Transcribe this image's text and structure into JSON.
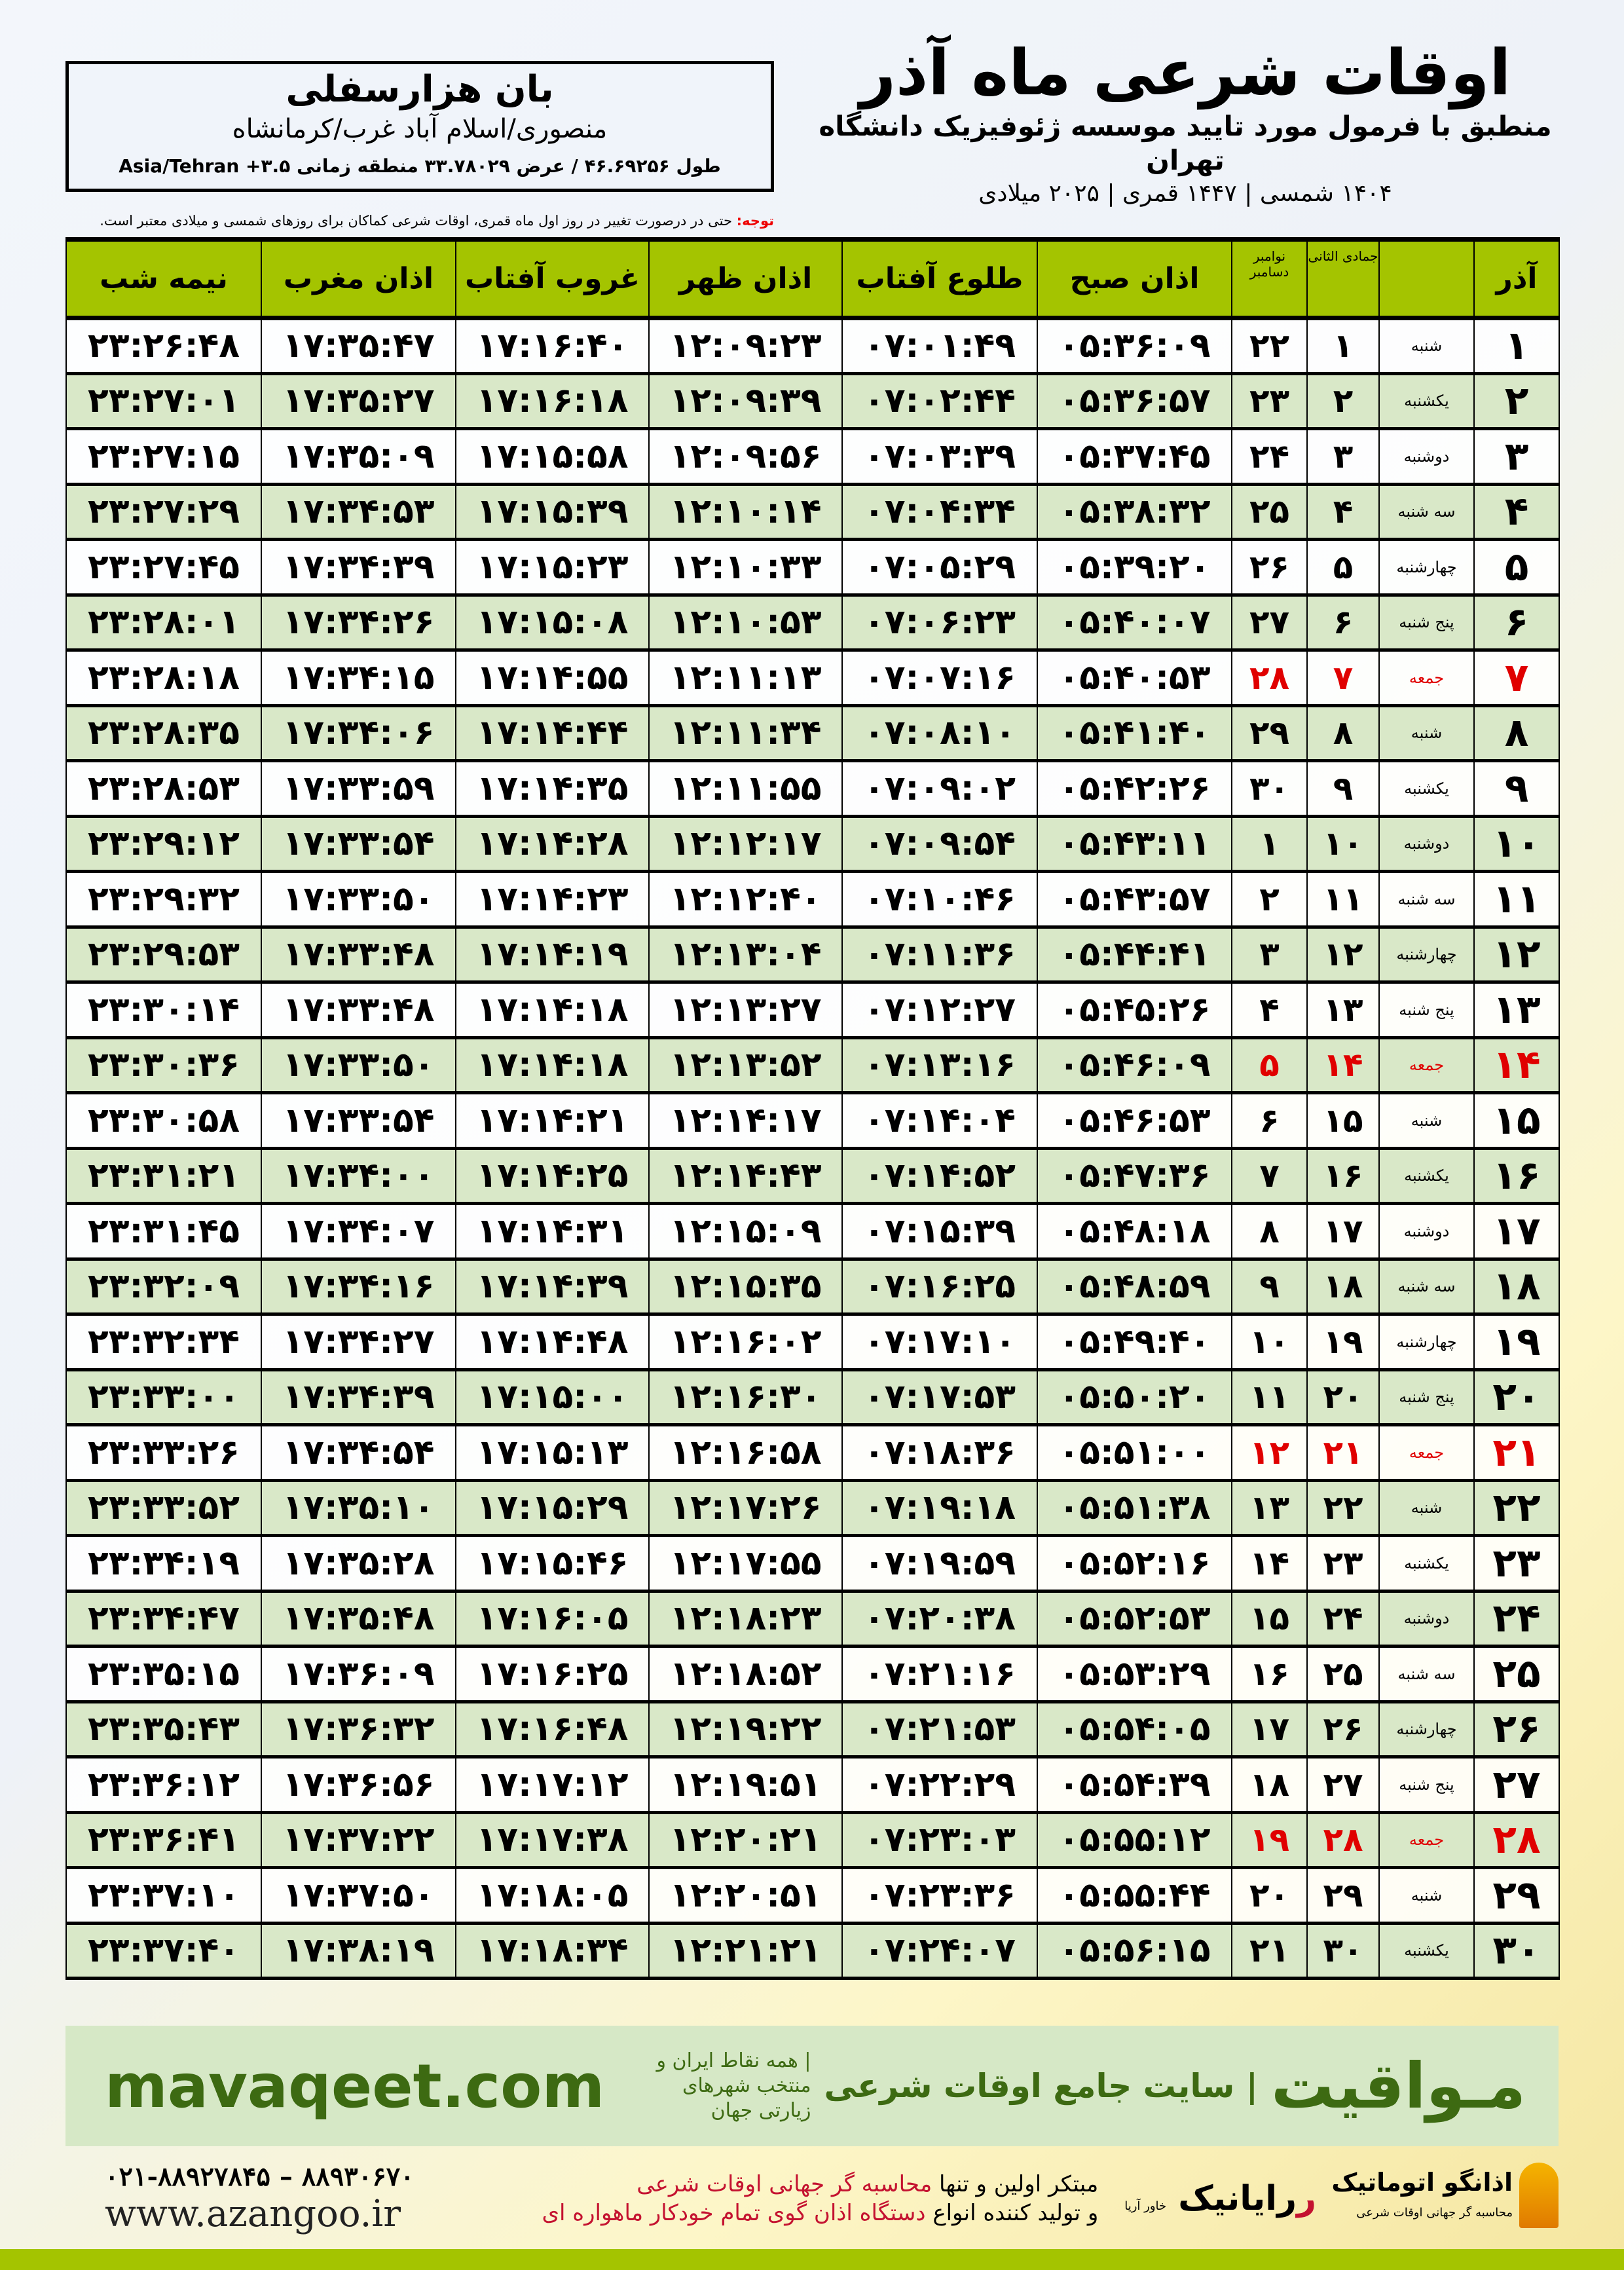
{
  "header": {
    "title": "اوقات شرعی ماه آذر",
    "subtitle": "منطبق با فرمول مورد تایید موسسه ژئوفیزیک دانشگاه تهران",
    "years": "۱۴۰۴ شمسی | ۱۴۴۷ قمری | ۲۰۲۵ میلادی"
  },
  "location": {
    "name": "بان هزارسفلی",
    "path": "منصوری/اسلام آباد غرب/کرمانشاه",
    "coords": "طول ۴۶.۶۹۲۵۶ / عرض ۳۳.۷۸۰۲۹ منطقه زمانی Asia/Tehran +۳.۵"
  },
  "note": {
    "label": "توجه:",
    "text": " حتی در درصورت تغییر در روز اول ماه قمری، اوقات شرعی کماکان برای روزهای شمسی و میلادی معتبر است."
  },
  "table": {
    "headers": {
      "azar": "آذر",
      "qamari": "جمادی الثانی",
      "greg": "نوامبر دسامبر",
      "sobh": "اذان صبح",
      "tolu": "طلوع آفتاب",
      "zohr": "اذان ظهر",
      "ghorub": "غروب آفتاب",
      "maghreb": "اذان مغرب",
      "nime": "نیمه شب"
    },
    "highlight_color": "#e00000",
    "header_color": "#a4c400",
    "alt_row_color": "#d9e8c8",
    "rows": [
      [
        "۱",
        "شنبه",
        "۱",
        "۲۲",
        "۰۵:۳۶:۰۹",
        "۰۷:۰۱:۴۹",
        "۱۲:۰۹:۲۳",
        "۱۷:۱۶:۴۰",
        "۱۷:۳۵:۴۷",
        "۲۳:۲۶:۴۸"
      ],
      [
        "۲",
        "یکشنبه",
        "۲",
        "۲۳",
        "۰۵:۳۶:۵۷",
        "۰۷:۰۲:۴۴",
        "۱۲:۰۹:۳۹",
        "۱۷:۱۶:۱۸",
        "۱۷:۳۵:۲۷",
        "۲۳:۲۷:۰۱"
      ],
      [
        "۳",
        "دوشنبه",
        "۳",
        "۲۴",
        "۰۵:۳۷:۴۵",
        "۰۷:۰۳:۳۹",
        "۱۲:۰۹:۵۶",
        "۱۷:۱۵:۵۸",
        "۱۷:۳۵:۰۹",
        "۲۳:۲۷:۱۵"
      ],
      [
        "۴",
        "سه شنبه",
        "۴",
        "۲۵",
        "۰۵:۳۸:۳۲",
        "۰۷:۰۴:۳۴",
        "۱۲:۱۰:۱۴",
        "۱۷:۱۵:۳۹",
        "۱۷:۳۴:۵۳",
        "۲۳:۲۷:۲۹"
      ],
      [
        "۵",
        "چهارشنبه",
        "۵",
        "۲۶",
        "۰۵:۳۹:۲۰",
        "۰۷:۰۵:۲۹",
        "۱۲:۱۰:۳۳",
        "۱۷:۱۵:۲۳",
        "۱۷:۳۴:۳۹",
        "۲۳:۲۷:۴۵"
      ],
      [
        "۶",
        "پنج شنبه",
        "۶",
        "۲۷",
        "۰۵:۴۰:۰۷",
        "۰۷:۰۶:۲۳",
        "۱۲:۱۰:۵۳",
        "۱۷:۱۵:۰۸",
        "۱۷:۳۴:۲۶",
        "۲۳:۲۸:۰۱"
      ],
      [
        "۷",
        "جمعه",
        "۷",
        "۲۸",
        "۰۵:۴۰:۵۳",
        "۰۷:۰۷:۱۶",
        "۱۲:۱۱:۱۳",
        "۱۷:۱۴:۵۵",
        "۱۷:۳۴:۱۵",
        "۲۳:۲۸:۱۸"
      ],
      [
        "۸",
        "شنبه",
        "۸",
        "۲۹",
        "۰۵:۴۱:۴۰",
        "۰۷:۰۸:۱۰",
        "۱۲:۱۱:۳۴",
        "۱۷:۱۴:۴۴",
        "۱۷:۳۴:۰۶",
        "۲۳:۲۸:۳۵"
      ],
      [
        "۹",
        "یکشنبه",
        "۹",
        "۳۰",
        "۰۵:۴۲:۲۶",
        "۰۷:۰۹:۰۲",
        "۱۲:۱۱:۵۵",
        "۱۷:۱۴:۳۵",
        "۱۷:۳۳:۵۹",
        "۲۳:۲۸:۵۳"
      ],
      [
        "۱۰",
        "دوشنبه",
        "۱۰",
        "۱",
        "۰۵:۴۳:۱۱",
        "۰۷:۰۹:۵۴",
        "۱۲:۱۲:۱۷",
        "۱۷:۱۴:۲۸",
        "۱۷:۳۳:۵۴",
        "۲۳:۲۹:۱۲"
      ],
      [
        "۱۱",
        "سه شنبه",
        "۱۱",
        "۲",
        "۰۵:۴۳:۵۷",
        "۰۷:۱۰:۴۶",
        "۱۲:۱۲:۴۰",
        "۱۷:۱۴:۲۳",
        "۱۷:۳۳:۵۰",
        "۲۳:۲۹:۳۲"
      ],
      [
        "۱۲",
        "چهارشنبه",
        "۱۲",
        "۳",
        "۰۵:۴۴:۴۱",
        "۰۷:۱۱:۳۶",
        "۱۲:۱۳:۰۴",
        "۱۷:۱۴:۱۹",
        "۱۷:۳۳:۴۸",
        "۲۳:۲۹:۵۳"
      ],
      [
        "۱۳",
        "پنج شنبه",
        "۱۳",
        "۴",
        "۰۵:۴۵:۲۶",
        "۰۷:۱۲:۲۷",
        "۱۲:۱۳:۲۷",
        "۱۷:۱۴:۱۸",
        "۱۷:۳۳:۴۸",
        "۲۳:۳۰:۱۴"
      ],
      [
        "۱۴",
        "جمعه",
        "۱۴",
        "۵",
        "۰۵:۴۶:۰۹",
        "۰۷:۱۳:۱۶",
        "۱۲:۱۳:۵۲",
        "۱۷:۱۴:۱۸",
        "۱۷:۳۳:۵۰",
        "۲۳:۳۰:۳۶"
      ],
      [
        "۱۵",
        "شنبه",
        "۱۵",
        "۶",
        "۰۵:۴۶:۵۳",
        "۰۷:۱۴:۰۴",
        "۱۲:۱۴:۱۷",
        "۱۷:۱۴:۲۱",
        "۱۷:۳۳:۵۴",
        "۲۳:۳۰:۵۸"
      ],
      [
        "۱۶",
        "یکشنبه",
        "۱۶",
        "۷",
        "۰۵:۴۷:۳۶",
        "۰۷:۱۴:۵۲",
        "۱۲:۱۴:۴۳",
        "۱۷:۱۴:۲۵",
        "۱۷:۳۴:۰۰",
        "۲۳:۳۱:۲۱"
      ],
      [
        "۱۷",
        "دوشنبه",
        "۱۷",
        "۸",
        "۰۵:۴۸:۱۸",
        "۰۷:۱۵:۳۹",
        "۱۲:۱۵:۰۹",
        "۱۷:۱۴:۳۱",
        "۱۷:۳۴:۰۷",
        "۲۳:۳۱:۴۵"
      ],
      [
        "۱۸",
        "سه شنبه",
        "۱۸",
        "۹",
        "۰۵:۴۸:۵۹",
        "۰۷:۱۶:۲۵",
        "۱۲:۱۵:۳۵",
        "۱۷:۱۴:۳۹",
        "۱۷:۳۴:۱۶",
        "۲۳:۳۲:۰۹"
      ],
      [
        "۱۹",
        "چهارشنبه",
        "۱۹",
        "۱۰",
        "۰۵:۴۹:۴۰",
        "۰۷:۱۷:۱۰",
        "۱۲:۱۶:۰۲",
        "۱۷:۱۴:۴۸",
        "۱۷:۳۴:۲۷",
        "۲۳:۳۲:۳۴"
      ],
      [
        "۲۰",
        "پنج شنبه",
        "۲۰",
        "۱۱",
        "۰۵:۵۰:۲۰",
        "۰۷:۱۷:۵۳",
        "۱۲:۱۶:۳۰",
        "۱۷:۱۵:۰۰",
        "۱۷:۳۴:۳۹",
        "۲۳:۳۳:۰۰"
      ],
      [
        "۲۱",
        "جمعه",
        "۲۱",
        "۱۲",
        "۰۵:۵۱:۰۰",
        "۰۷:۱۸:۳۶",
        "۱۲:۱۶:۵۸",
        "۱۷:۱۵:۱۳",
        "۱۷:۳۴:۵۴",
        "۲۳:۳۳:۲۶"
      ],
      [
        "۲۲",
        "شنبه",
        "۲۲",
        "۱۳",
        "۰۵:۵۱:۳۸",
        "۰۷:۱۹:۱۸",
        "۱۲:۱۷:۲۶",
        "۱۷:۱۵:۲۹",
        "۱۷:۳۵:۱۰",
        "۲۳:۳۳:۵۲"
      ],
      [
        "۲۳",
        "یکشنبه",
        "۲۳",
        "۱۴",
        "۰۵:۵۲:۱۶",
        "۰۷:۱۹:۵۹",
        "۱۲:۱۷:۵۵",
        "۱۷:۱۵:۴۶",
        "۱۷:۳۵:۲۸",
        "۲۳:۳۴:۱۹"
      ],
      [
        "۲۴",
        "دوشنبه",
        "۲۴",
        "۱۵",
        "۰۵:۵۲:۵۳",
        "۰۷:۲۰:۳۸",
        "۱۲:۱۸:۲۳",
        "۱۷:۱۶:۰۵",
        "۱۷:۳۵:۴۸",
        "۲۳:۳۴:۴۷"
      ],
      [
        "۲۵",
        "سه شنبه",
        "۲۵",
        "۱۶",
        "۰۵:۵۳:۲۹",
        "۰۷:۲۱:۱۶",
        "۱۲:۱۸:۵۲",
        "۱۷:۱۶:۲۵",
        "۱۷:۳۶:۰۹",
        "۲۳:۳۵:۱۵"
      ],
      [
        "۲۶",
        "چهارشنبه",
        "۲۶",
        "۱۷",
        "۰۵:۵۴:۰۵",
        "۰۷:۲۱:۵۳",
        "۱۲:۱۹:۲۲",
        "۱۷:۱۶:۴۸",
        "۱۷:۳۶:۳۲",
        "۲۳:۳۵:۴۳"
      ],
      [
        "۲۷",
        "پنج شنبه",
        "۲۷",
        "۱۸",
        "۰۵:۵۴:۳۹",
        "۰۷:۲۲:۲۹",
        "۱۲:۱۹:۵۱",
        "۱۷:۱۷:۱۲",
        "۱۷:۳۶:۵۶",
        "۲۳:۳۶:۱۲"
      ],
      [
        "۲۸",
        "جمعه",
        "۲۸",
        "۱۹",
        "۰۵:۵۵:۱۲",
        "۰۷:۲۳:۰۳",
        "۱۲:۲۰:۲۱",
        "۱۷:۱۷:۳۸",
        "۱۷:۳۷:۲۲",
        "۲۳:۳۶:۴۱"
      ],
      [
        "۲۹",
        "شنبه",
        "۲۹",
        "۲۰",
        "۰۵:۵۵:۴۴",
        "۰۷:۲۳:۳۶",
        "۱۲:۲۰:۵۱",
        "۱۷:۱۸:۰۵",
        "۱۷:۳۷:۵۰",
        "۲۳:۳۷:۱۰"
      ],
      [
        "۳۰",
        "یکشنبه",
        "۳۰",
        "۲۱",
        "۰۵:۵۶:۱۵",
        "۰۷:۲۴:۰۷",
        "۱۲:۲۱:۲۱",
        "۱۷:۱۸:۳۴",
        "۱۷:۳۸:۱۹",
        "۲۳:۳۷:۴۰"
      ]
    ]
  },
  "banner": {
    "url": "mavaqeet.com",
    "logo": "مـواقیت",
    "tagline": "| سایت جامع اوقات شرعی",
    "sub": "| همه نقاط ایران و منتخب شهرهای زیارتی جهان"
  },
  "footer": {
    "phone": "۰۲۱-۸۸۹۲۷۸۴۵ – ۸۸۹۳۰۶۷۰",
    "web": "www.azangoo.ir",
    "promo1a": "مبتکر اولین و تنها ",
    "promo1b": "محاسبه گر جهانی اوقات شرعی",
    "promo2a": "و تولید کننده انواع ",
    "promo2b": "دستگاه اذان گوی تمام خودکار ماهواره ای",
    "logo_azangoo": "اذانگو اتوماتیک",
    "logo_azangoo_sub": "محاسبه گر جهانی اوقات شرعی",
    "logo_rayanik": "رایانیک",
    "logo_rayanik_sub": "خاور آریا"
  }
}
